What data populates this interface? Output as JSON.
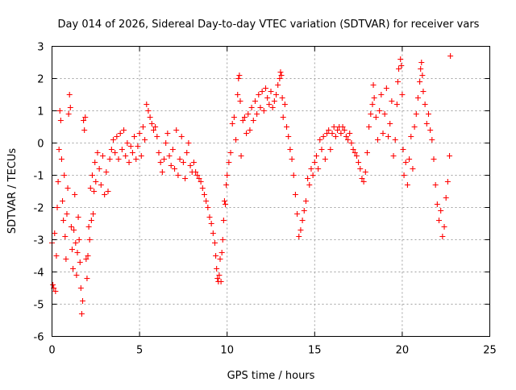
{
  "chart_data": {
    "type": "scatter",
    "title": "Day 014 of 2026, Sidereal Day-to-day VTEC variation (SDTVAR) for receiver vars",
    "xlabel": "GPS time / hours",
    "ylabel": "SDTVAR / TECUs",
    "xlim": [
      0,
      25
    ],
    "ylim": [
      -6,
      3
    ],
    "xticks": [
      "0",
      "5",
      "10",
      "15",
      "20",
      "25"
    ],
    "yticks": [
      "-6",
      "-5",
      "-4",
      "-3",
      "-2",
      "-1",
      "0",
      "1",
      "2",
      "3"
    ],
    "grid": true,
    "marker": "+",
    "color": "#ff0000",
    "series": [
      {
        "name": "SDTVAR",
        "points": [
          [
            0.0,
            -3.1
          ],
          [
            0.05,
            -4.4
          ],
          [
            0.1,
            -4.5
          ],
          [
            0.15,
            -2.8
          ],
          [
            0.2,
            -4.6
          ],
          [
            0.25,
            -3.5
          ],
          [
            0.3,
            -2.0
          ],
          [
            0.35,
            -1.2
          ],
          [
            0.4,
            -0.2
          ],
          [
            0.45,
            1.0
          ],
          [
            0.5,
            0.7
          ],
          [
            0.55,
            -0.5
          ],
          [
            0.6,
            -1.8
          ],
          [
            0.65,
            -2.4
          ],
          [
            0.7,
            -1.0
          ],
          [
            0.75,
            -2.9
          ],
          [
            0.8,
            -3.6
          ],
          [
            0.85,
            -2.2
          ],
          [
            0.9,
            -1.4
          ],
          [
            0.95,
            0.9
          ],
          [
            1.0,
            1.5
          ],
          [
            1.05,
            1.1
          ],
          [
            1.1,
            -2.6
          ],
          [
            1.15,
            -3.3
          ],
          [
            1.2,
            -3.9
          ],
          [
            1.25,
            -2.7
          ],
          [
            1.3,
            -1.6
          ],
          [
            1.35,
            -3.1
          ],
          [
            1.4,
            -4.1
          ],
          [
            1.45,
            -3.4
          ],
          [
            1.5,
            -2.3
          ],
          [
            1.55,
            -3.0
          ],
          [
            1.6,
            -3.7
          ],
          [
            1.65,
            -4.5
          ],
          [
            1.7,
            -5.3
          ],
          [
            1.75,
            -4.9
          ],
          [
            1.8,
            0.7
          ],
          [
            1.85,
            0.4
          ],
          [
            1.9,
            0.8
          ],
          [
            1.95,
            -3.6
          ],
          [
            2.0,
            -4.2
          ],
          [
            2.05,
            -3.5
          ],
          [
            2.1,
            -2.6
          ],
          [
            2.15,
            -3.0
          ],
          [
            2.2,
            -1.4
          ],
          [
            2.25,
            -2.4
          ],
          [
            2.3,
            -1.0
          ],
          [
            2.35,
            -2.2
          ],
          [
            2.4,
            -1.5
          ],
          [
            2.45,
            -0.6
          ],
          [
            2.5,
            -1.2
          ],
          [
            2.6,
            -0.3
          ],
          [
            2.7,
            -0.8
          ],
          [
            2.8,
            -1.3
          ],
          [
            2.9,
            -0.4
          ],
          [
            3.0,
            -1.6
          ],
          [
            3.1,
            -0.9
          ],
          [
            3.2,
            -1.5
          ],
          [
            3.3,
            -0.5
          ],
          [
            3.4,
            -0.2
          ],
          [
            3.5,
            0.1
          ],
          [
            3.6,
            -0.3
          ],
          [
            3.7,
            0.2
          ],
          [
            3.8,
            -0.5
          ],
          [
            3.9,
            0.3
          ],
          [
            4.0,
            -0.2
          ],
          [
            4.1,
            0.4
          ],
          [
            4.2,
            -0.4
          ],
          [
            4.3,
            0.0
          ],
          [
            4.4,
            -0.6
          ],
          [
            4.5,
            -0.1
          ],
          [
            4.6,
            -0.3
          ],
          [
            4.7,
            0.2
          ],
          [
            4.8,
            -0.5
          ],
          [
            4.9,
            -0.1
          ],
          [
            5.0,
            0.3
          ],
          [
            5.1,
            -0.4
          ],
          [
            5.2,
            0.5
          ],
          [
            5.3,
            0.1
          ],
          [
            5.4,
            1.2
          ],
          [
            5.5,
            1.0
          ],
          [
            5.6,
            0.8
          ],
          [
            5.7,
            0.6
          ],
          [
            5.8,
            0.4
          ],
          [
            5.9,
            0.5
          ],
          [
            6.0,
            0.2
          ],
          [
            6.1,
            -0.3
          ],
          [
            6.2,
            -0.6
          ],
          [
            6.3,
            -0.9
          ],
          [
            6.4,
            -0.5
          ],
          [
            6.5,
            0.0
          ],
          [
            6.6,
            0.3
          ],
          [
            6.7,
            -0.4
          ],
          [
            6.8,
            -0.7
          ],
          [
            6.9,
            -0.2
          ],
          [
            7.0,
            -0.8
          ],
          [
            7.1,
            0.4
          ],
          [
            7.2,
            -1.0
          ],
          [
            7.3,
            -0.5
          ],
          [
            7.4,
            0.2
          ],
          [
            7.5,
            -0.6
          ],
          [
            7.6,
            -1.1
          ],
          [
            7.7,
            -0.3
          ],
          [
            7.8,
            0.0
          ],
          [
            7.9,
            -0.7
          ],
          [
            8.0,
            -0.9
          ],
          [
            8.1,
            -0.6
          ],
          [
            8.2,
            -0.9
          ],
          [
            8.3,
            -1.0
          ],
          [
            8.4,
            -1.1
          ],
          [
            8.5,
            -1.2
          ],
          [
            8.6,
            -1.4
          ],
          [
            8.7,
            -1.6
          ],
          [
            8.8,
            -1.8
          ],
          [
            8.9,
            -2.0
          ],
          [
            9.0,
            -2.3
          ],
          [
            9.1,
            -2.5
          ],
          [
            9.2,
            -2.8
          ],
          [
            9.3,
            -3.1
          ],
          [
            9.35,
            -3.5
          ],
          [
            9.4,
            -3.9
          ],
          [
            9.45,
            -4.2
          ],
          [
            9.5,
            -4.3
          ],
          [
            9.55,
            -4.1
          ],
          [
            9.6,
            -3.6
          ],
          [
            9.65,
            -4.3
          ],
          [
            9.7,
            -3.4
          ],
          [
            9.75,
            -3.0
          ],
          [
            9.8,
            -2.4
          ],
          [
            9.85,
            -1.8
          ],
          [
            9.9,
            -1.9
          ],
          [
            9.95,
            -1.3
          ],
          [
            10.0,
            -1.0
          ],
          [
            10.1,
            -0.6
          ],
          [
            10.2,
            -0.3
          ],
          [
            10.3,
            0.6
          ],
          [
            10.4,
            0.8
          ],
          [
            10.5,
            0.1
          ],
          [
            10.6,
            1.5
          ],
          [
            10.65,
            2.0
          ],
          [
            10.7,
            2.1
          ],
          [
            10.75,
            1.3
          ],
          [
            10.8,
            -0.4
          ],
          [
            10.9,
            0.7
          ],
          [
            11.0,
            0.8
          ],
          [
            11.1,
            0.3
          ],
          [
            11.2,
            0.9
          ],
          [
            11.3,
            0.4
          ],
          [
            11.4,
            1.1
          ],
          [
            11.5,
            0.7
          ],
          [
            11.6,
            1.3
          ],
          [
            11.7,
            0.9
          ],
          [
            11.8,
            1.5
          ],
          [
            11.9,
            1.1
          ],
          [
            12.0,
            1.6
          ],
          [
            12.1,
            1.0
          ],
          [
            12.2,
            1.7
          ],
          [
            12.3,
            1.4
          ],
          [
            12.4,
            1.2
          ],
          [
            12.5,
            1.6
          ],
          [
            12.6,
            1.1
          ],
          [
            12.7,
            1.3
          ],
          [
            12.8,
            1.5
          ],
          [
            12.9,
            1.8
          ],
          [
            13.0,
            2.0
          ],
          [
            13.05,
            2.2
          ],
          [
            13.1,
            2.1
          ],
          [
            13.15,
            1.4
          ],
          [
            13.2,
            0.8
          ],
          [
            13.3,
            1.2
          ],
          [
            13.4,
            0.5
          ],
          [
            13.5,
            0.2
          ],
          [
            13.6,
            -0.2
          ],
          [
            13.7,
            -0.5
          ],
          [
            13.8,
            -1.0
          ],
          [
            13.9,
            -1.6
          ],
          [
            14.0,
            -2.2
          ],
          [
            14.1,
            -2.9
          ],
          [
            14.2,
            -2.7
          ],
          [
            14.3,
            -2.4
          ],
          [
            14.4,
            -2.1
          ],
          [
            14.5,
            -1.8
          ],
          [
            14.6,
            -1.1
          ],
          [
            14.7,
            -1.3
          ],
          [
            14.8,
            -0.8
          ],
          [
            14.9,
            -1.0
          ],
          [
            15.0,
            -0.6
          ],
          [
            15.1,
            -0.4
          ],
          [
            15.2,
            -0.8
          ],
          [
            15.3,
            0.1
          ],
          [
            15.4,
            -0.2
          ],
          [
            15.5,
            0.2
          ],
          [
            15.6,
            -0.5
          ],
          [
            15.7,
            0.3
          ],
          [
            15.8,
            0.4
          ],
          [
            15.9,
            -0.2
          ],
          [
            16.0,
            0.3
          ],
          [
            16.1,
            0.5
          ],
          [
            16.2,
            0.2
          ],
          [
            16.3,
            0.4
          ],
          [
            16.4,
            0.5
          ],
          [
            16.5,
            0.3
          ],
          [
            16.6,
            0.5
          ],
          [
            16.7,
            0.4
          ],
          [
            16.8,
            0.2
          ],
          [
            16.9,
            0.1
          ],
          [
            17.0,
            0.3
          ],
          [
            17.1,
            0.0
          ],
          [
            17.2,
            -0.2
          ],
          [
            17.3,
            -0.3
          ],
          [
            17.4,
            -0.4
          ],
          [
            17.5,
            -0.6
          ],
          [
            17.6,
            -0.8
          ],
          [
            17.7,
            -1.1
          ],
          [
            17.8,
            -1.2
          ],
          [
            17.9,
            -0.9
          ],
          [
            18.0,
            -0.3
          ],
          [
            18.1,
            0.5
          ],
          [
            18.2,
            0.9
          ],
          [
            18.3,
            1.2
          ],
          [
            18.35,
            1.8
          ],
          [
            18.4,
            1.4
          ],
          [
            18.5,
            0.8
          ],
          [
            18.6,
            0.1
          ],
          [
            18.7,
            1.0
          ],
          [
            18.8,
            1.5
          ],
          [
            18.9,
            0.3
          ],
          [
            19.0,
            0.9
          ],
          [
            19.1,
            1.7
          ],
          [
            19.2,
            0.2
          ],
          [
            19.3,
            0.6
          ],
          [
            19.4,
            1.3
          ],
          [
            19.5,
            -0.4
          ],
          [
            19.6,
            0.1
          ],
          [
            19.7,
            1.2
          ],
          [
            19.75,
            1.9
          ],
          [
            19.8,
            2.3
          ],
          [
            19.9,
            2.6
          ],
          [
            19.95,
            2.4
          ],
          [
            20.0,
            1.5
          ],
          [
            20.05,
            -0.2
          ],
          [
            20.1,
            -1.0
          ],
          [
            20.2,
            -0.6
          ],
          [
            20.3,
            -1.3
          ],
          [
            20.4,
            -0.5
          ],
          [
            20.5,
            0.2
          ],
          [
            20.6,
            -0.8
          ],
          [
            20.7,
            0.5
          ],
          [
            20.8,
            0.9
          ],
          [
            20.9,
            1.4
          ],
          [
            21.0,
            1.9
          ],
          [
            21.05,
            2.3
          ],
          [
            21.1,
            2.5
          ],
          [
            21.15,
            2.1
          ],
          [
            21.2,
            1.6
          ],
          [
            21.3,
            1.2
          ],
          [
            21.4,
            0.6
          ],
          [
            21.5,
            0.9
          ],
          [
            21.6,
            0.4
          ],
          [
            21.7,
            0.1
          ],
          [
            21.8,
            -0.5
          ],
          [
            21.9,
            -1.3
          ],
          [
            22.0,
            -1.9
          ],
          [
            22.1,
            -2.4
          ],
          [
            22.2,
            -2.1
          ],
          [
            22.3,
            -2.9
          ],
          [
            22.4,
            -2.6
          ],
          [
            22.5,
            -1.7
          ],
          [
            22.6,
            -1.2
          ],
          [
            22.7,
            -0.4
          ],
          [
            22.75,
            2.7
          ]
        ]
      }
    ]
  }
}
